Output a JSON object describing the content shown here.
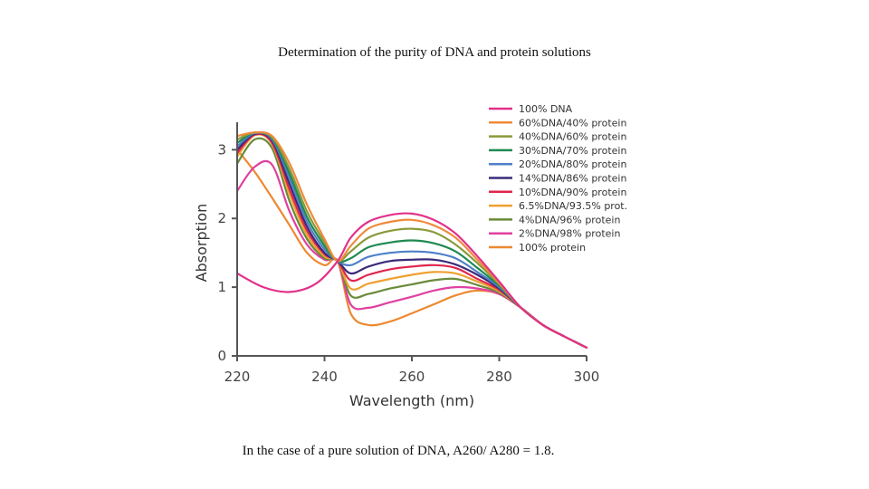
{
  "slide": {
    "title": "Determination of the purity of DNA and protein solutions",
    "caption": "In the case of a pure solution of DNA, A260/ A280 = 1.8."
  },
  "chart_data": {
    "type": "line",
    "title": "",
    "xlabel": "Wavelength (nm)",
    "ylabel": "Absorption",
    "xlim": [
      220,
      300
    ],
    "ylim": [
      0,
      3.4
    ],
    "xticks": [
      220,
      240,
      260,
      280,
      300
    ],
    "yticks": [
      0,
      1,
      2,
      3
    ],
    "grid": false,
    "legend_position": "top-right",
    "series": [
      {
        "name": "100% DNA",
        "color": "#e2318a",
        "points": [
          [
            220,
            1.2
          ],
          [
            226,
            1.0
          ],
          [
            232,
            0.93
          ],
          [
            238,
            1.05
          ],
          [
            243,
            1.38
          ],
          [
            246,
            1.72
          ],
          [
            250,
            1.95
          ],
          [
            255,
            2.05
          ],
          [
            260,
            2.07
          ],
          [
            265,
            1.98
          ],
          [
            270,
            1.78
          ],
          [
            275,
            1.45
          ],
          [
            280,
            1.08
          ],
          [
            285,
            0.7
          ],
          [
            290,
            0.45
          ],
          [
            295,
            0.28
          ],
          [
            300,
            0.12
          ]
        ]
      },
      {
        "name": "60%DNA/40% protein",
        "color": "#ef8a3a",
        "points": [
          [
            220,
            3.2
          ],
          [
            224,
            3.25
          ],
          [
            228,
            3.2
          ],
          [
            232,
            2.8
          ],
          [
            236,
            2.2
          ],
          [
            240,
            1.7
          ],
          [
            243,
            1.38
          ],
          [
            246,
            1.6
          ],
          [
            250,
            1.85
          ],
          [
            255,
            1.95
          ],
          [
            260,
            1.98
          ],
          [
            265,
            1.9
          ],
          [
            270,
            1.72
          ],
          [
            275,
            1.4
          ],
          [
            280,
            1.06
          ],
          [
            285,
            0.7
          ],
          [
            290,
            0.45
          ],
          [
            295,
            0.28
          ],
          [
            300,
            0.12
          ]
        ]
      },
      {
        "name": "40%DNA/60% protein",
        "color": "#8a9a3a",
        "points": [
          [
            220,
            3.15
          ],
          [
            224,
            3.25
          ],
          [
            228,
            3.18
          ],
          [
            232,
            2.72
          ],
          [
            236,
            2.1
          ],
          [
            240,
            1.65
          ],
          [
            243,
            1.38
          ],
          [
            246,
            1.52
          ],
          [
            250,
            1.72
          ],
          [
            255,
            1.82
          ],
          [
            260,
            1.85
          ],
          [
            265,
            1.8
          ],
          [
            270,
            1.62
          ],
          [
            275,
            1.35
          ],
          [
            280,
            1.04
          ],
          [
            285,
            0.7
          ],
          [
            290,
            0.45
          ],
          [
            295,
            0.28
          ],
          [
            300,
            0.12
          ]
        ]
      },
      {
        "name": "30%DNA/70% protein",
        "color": "#1e8a50",
        "points": [
          [
            220,
            3.1
          ],
          [
            224,
            3.25
          ],
          [
            228,
            3.17
          ],
          [
            232,
            2.65
          ],
          [
            236,
            2.02
          ],
          [
            240,
            1.6
          ],
          [
            243,
            1.38
          ],
          [
            246,
            1.42
          ],
          [
            250,
            1.58
          ],
          [
            255,
            1.65
          ],
          [
            260,
            1.68
          ],
          [
            265,
            1.64
          ],
          [
            270,
            1.52
          ],
          [
            275,
            1.28
          ],
          [
            280,
            1.02
          ],
          [
            285,
            0.7
          ],
          [
            290,
            0.45
          ],
          [
            295,
            0.28
          ],
          [
            300,
            0.12
          ]
        ]
      },
      {
        "name": "20%DNA/80% protein",
        "color": "#4f80c8",
        "points": [
          [
            220,
            3.05
          ],
          [
            224,
            3.24
          ],
          [
            228,
            3.15
          ],
          [
            232,
            2.58
          ],
          [
            236,
            1.95
          ],
          [
            240,
            1.55
          ],
          [
            243,
            1.38
          ],
          [
            246,
            1.32
          ],
          [
            250,
            1.44
          ],
          [
            255,
            1.5
          ],
          [
            260,
            1.52
          ],
          [
            265,
            1.5
          ],
          [
            270,
            1.42
          ],
          [
            275,
            1.22
          ],
          [
            280,
            1.0
          ],
          [
            285,
            0.7
          ],
          [
            290,
            0.45
          ],
          [
            295,
            0.28
          ],
          [
            300,
            0.12
          ]
        ]
      },
      {
        "name": "14%DNA/86% protein",
        "color": "#3a2a7a",
        "points": [
          [
            220,
            3.0
          ],
          [
            224,
            3.23
          ],
          [
            228,
            3.13
          ],
          [
            232,
            2.5
          ],
          [
            236,
            1.88
          ],
          [
            240,
            1.5
          ],
          [
            243,
            1.38
          ],
          [
            246,
            1.2
          ],
          [
            250,
            1.3
          ],
          [
            255,
            1.38
          ],
          [
            260,
            1.4
          ],
          [
            265,
            1.4
          ],
          [
            270,
            1.33
          ],
          [
            275,
            1.18
          ],
          [
            280,
            0.98
          ],
          [
            285,
            0.7
          ],
          [
            290,
            0.45
          ],
          [
            295,
            0.28
          ],
          [
            300,
            0.12
          ]
        ]
      },
      {
        "name": "10%DNA/90% protein",
        "color": "#e0264e",
        "points": [
          [
            220,
            2.95
          ],
          [
            224,
            3.22
          ],
          [
            228,
            3.1
          ],
          [
            232,
            2.42
          ],
          [
            236,
            1.82
          ],
          [
            240,
            1.48
          ],
          [
            243,
            1.38
          ],
          [
            246,
            1.1
          ],
          [
            250,
            1.18
          ],
          [
            255,
            1.26
          ],
          [
            260,
            1.3
          ],
          [
            265,
            1.32
          ],
          [
            270,
            1.28
          ],
          [
            275,
            1.12
          ],
          [
            280,
            0.96
          ],
          [
            285,
            0.7
          ],
          [
            290,
            0.45
          ],
          [
            295,
            0.28
          ],
          [
            300,
            0.12
          ]
        ]
      },
      {
        "name": "6.5%DNA/93.5% prot.",
        "color": "#f0a030",
        "points": [
          [
            220,
            2.9
          ],
          [
            224,
            3.21
          ],
          [
            228,
            3.08
          ],
          [
            232,
            2.35
          ],
          [
            236,
            1.76
          ],
          [
            240,
            1.45
          ],
          [
            243,
            1.38
          ],
          [
            246,
            0.98
          ],
          [
            250,
            1.05
          ],
          [
            255,
            1.12
          ],
          [
            260,
            1.18
          ],
          [
            265,
            1.22
          ],
          [
            270,
            1.2
          ],
          [
            275,
            1.08
          ],
          [
            280,
            0.94
          ],
          [
            285,
            0.7
          ],
          [
            290,
            0.45
          ],
          [
            295,
            0.28
          ],
          [
            300,
            0.12
          ]
        ]
      },
      {
        "name": "4%DNA/96% protein",
        "color": "#6a8a3a",
        "points": [
          [
            220,
            2.8
          ],
          [
            224,
            3.15
          ],
          [
            228,
            3.02
          ],
          [
            232,
            2.25
          ],
          [
            236,
            1.7
          ],
          [
            240,
            1.42
          ],
          [
            243,
            1.38
          ],
          [
            246,
            0.88
          ],
          [
            250,
            0.9
          ],
          [
            255,
            0.98
          ],
          [
            260,
            1.04
          ],
          [
            265,
            1.1
          ],
          [
            270,
            1.12
          ],
          [
            275,
            1.03
          ],
          [
            280,
            0.92
          ],
          [
            285,
            0.7
          ],
          [
            290,
            0.45
          ],
          [
            295,
            0.28
          ],
          [
            300,
            0.12
          ]
        ]
      },
      {
        "name": "2%DNA/98% protein",
        "color": "#e040a0",
        "points": [
          [
            220,
            2.4
          ],
          [
            224,
            2.75
          ],
          [
            228,
            2.78
          ],
          [
            232,
            2.1
          ],
          [
            236,
            1.62
          ],
          [
            240,
            1.4
          ],
          [
            243,
            1.38
          ],
          [
            246,
            0.75
          ],
          [
            250,
            0.7
          ],
          [
            255,
            0.78
          ],
          [
            260,
            0.86
          ],
          [
            265,
            0.95
          ],
          [
            270,
            1.0
          ],
          [
            275,
            0.98
          ],
          [
            280,
            0.9
          ],
          [
            285,
            0.7
          ],
          [
            290,
            0.45
          ],
          [
            295,
            0.28
          ],
          [
            300,
            0.12
          ]
        ]
      },
      {
        "name": "100% protein",
        "color": "#ee8830",
        "points": [
          [
            220,
            3.0
          ],
          [
            224,
            2.68
          ],
          [
            228,
            2.3
          ],
          [
            232,
            1.9
          ],
          [
            236,
            1.5
          ],
          [
            240,
            1.32
          ],
          [
            243,
            1.38
          ],
          [
            246,
            0.62
          ],
          [
            250,
            0.45
          ],
          [
            255,
            0.5
          ],
          [
            260,
            0.62
          ],
          [
            265,
            0.75
          ],
          [
            270,
            0.88
          ],
          [
            275,
            0.95
          ],
          [
            280,
            0.9
          ],
          [
            285,
            0.7
          ],
          [
            290,
            0.45
          ],
          [
            295,
            0.28
          ],
          [
            300,
            0.12
          ]
        ]
      }
    ]
  }
}
